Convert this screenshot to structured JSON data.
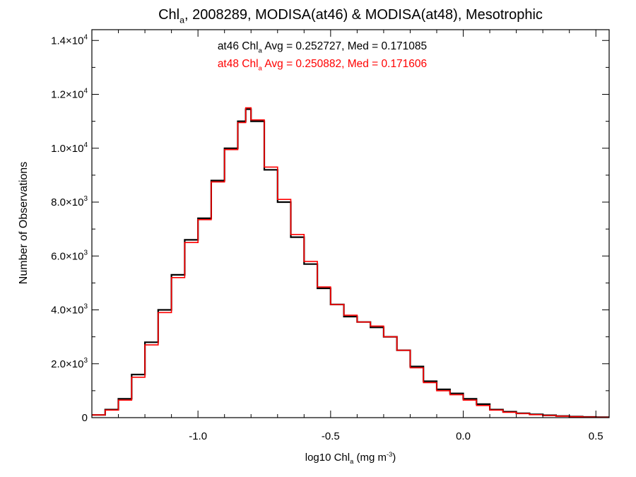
{
  "chart_data": {
    "type": "line",
    "step": true,
    "title_parts": [
      "Chl",
      "a",
      ", 2008289, MODISA(at46) & MODISA(at48), Mesotrophic"
    ],
    "xlabel_parts": [
      "log10 Chl",
      "a",
      " (mg m",
      "-3",
      ")"
    ],
    "ylabel": "Number of Observations",
    "xlim": [
      -1.4,
      0.55
    ],
    "ylim": [
      0,
      14400
    ],
    "xticks": [
      -1.0,
      -0.5,
      0.0,
      0.5
    ],
    "xtick_labels": [
      "-1.0",
      "-0.5",
      "0.0",
      "0.5"
    ],
    "yticks": [
      0,
      2000,
      4000,
      6000,
      8000,
      10000,
      12000,
      14000
    ],
    "ytick_labels": [
      {
        "mantissa": "0",
        "exponent": ""
      },
      {
        "mantissa": "2.0×10",
        "exponent": "3"
      },
      {
        "mantissa": "4.0×10",
        "exponent": "3"
      },
      {
        "mantissa": "6.0×10",
        "exponent": "3"
      },
      {
        "mantissa": "8.0×10",
        "exponent": "3"
      },
      {
        "mantissa": "1.0×10",
        "exponent": "4"
      },
      {
        "mantissa": "1.2×10",
        "exponent": "4"
      },
      {
        "mantissa": "1.4×10",
        "exponent": "4"
      }
    ],
    "annotations": [
      {
        "parts": [
          "at46 Chl",
          "a",
          " Avg = 0.252727, Med = 0.171085"
        ],
        "color": "#000000"
      },
      {
        "parts": [
          "at48 Chl",
          "a",
          " Avg = 0.250882, Med = 0.171606"
        ],
        "color": "#ff0000"
      }
    ],
    "series": [
      {
        "color": "#000000",
        "x": [
          -1.4,
          -1.35,
          -1.3,
          -1.25,
          -1.2,
          -1.15,
          -1.1,
          -1.05,
          -1.0,
          -0.95,
          -0.9,
          -0.85,
          -0.82,
          -0.8,
          -0.75,
          -0.7,
          -0.65,
          -0.6,
          -0.55,
          -0.5,
          -0.45,
          -0.4,
          -0.35,
          -0.3,
          -0.25,
          -0.2,
          -0.15,
          -0.1,
          -0.05,
          0.0,
          0.05,
          0.1,
          0.15,
          0.2,
          0.25,
          0.3,
          0.35,
          0.4,
          0.45,
          0.5,
          0.55
        ],
        "y": [
          100,
          300,
          700,
          1600,
          2800,
          4000,
          5300,
          6600,
          7400,
          8800,
          10000,
          11000,
          11450,
          11000,
          9200,
          8000,
          6700,
          5700,
          4800,
          4200,
          3750,
          3550,
          3350,
          3000,
          2500,
          1900,
          1350,
          1050,
          900,
          700,
          500,
          300,
          220,
          160,
          120,
          90,
          60,
          40,
          25,
          15,
          10
        ]
      },
      {
        "color": "#ff0000",
        "x": [
          -1.4,
          -1.35,
          -1.3,
          -1.25,
          -1.2,
          -1.15,
          -1.1,
          -1.05,
          -1.0,
          -0.95,
          -0.9,
          -0.85,
          -0.82,
          -0.8,
          -0.75,
          -0.7,
          -0.65,
          -0.6,
          -0.55,
          -0.5,
          -0.45,
          -0.4,
          -0.35,
          -0.3,
          -0.25,
          -0.2,
          -0.15,
          -0.1,
          -0.05,
          0.0,
          0.05,
          0.1,
          0.15,
          0.2,
          0.25,
          0.3,
          0.35,
          0.4,
          0.45,
          0.5,
          0.55
        ],
        "y": [
          100,
          280,
          650,
          1500,
          2700,
          3900,
          5200,
          6500,
          7350,
          8750,
          9950,
          10950,
          11500,
          11050,
          9300,
          8100,
          6800,
          5800,
          4850,
          4200,
          3800,
          3550,
          3400,
          3000,
          2500,
          1850,
          1300,
          1000,
          850,
          650,
          450,
          280,
          200,
          150,
          110,
          80,
          55,
          35,
          20,
          12,
          8
        ]
      }
    ]
  }
}
